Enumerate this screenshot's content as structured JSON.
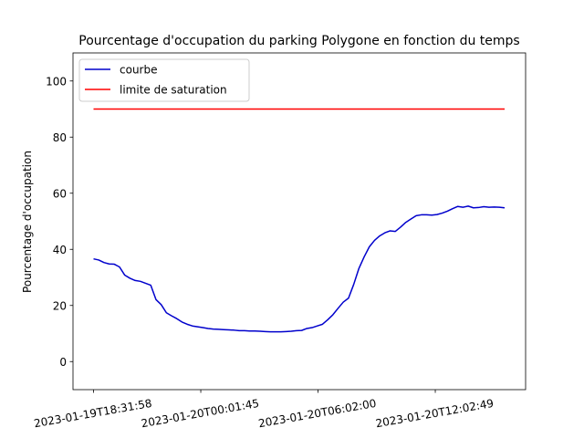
{
  "chart_data": {
    "type": "line",
    "title": "Pourcentage d'occupation du parking Polygone en fonction du temps",
    "ylabel": "Pourcentage d'occupation",
    "xlabel": "",
    "ylim": [
      -10,
      110
    ],
    "yticks": [
      0,
      20,
      40,
      60,
      80,
      100
    ],
    "xticks": [
      "2023-01-19T18:31:58",
      "2023-01-20T00:01:45",
      "2023-01-20T06:02:00",
      "2023-01-20T12:02:49"
    ],
    "grid": false,
    "legend_position": "upper-left",
    "series": [
      {
        "name": "courbe",
        "color": "#0000cc",
        "x": [
          "2023-01-19T18:31:58",
          "2023-01-19T18:47:58",
          "2023-01-19T19:03:58",
          "2023-01-19T19:19:58",
          "2023-01-19T19:35:58",
          "2023-01-19T19:51:58",
          "2023-01-19T20:07:58",
          "2023-01-19T20:23:58",
          "2023-01-19T20:39:58",
          "2023-01-19T20:55:58",
          "2023-01-19T21:11:58",
          "2023-01-19T21:27:58",
          "2023-01-19T21:43:58",
          "2023-01-19T21:59:58",
          "2023-01-19T22:15:58",
          "2023-01-19T22:31:58",
          "2023-01-19T22:47:58",
          "2023-01-19T23:03:58",
          "2023-01-19T23:19:58",
          "2023-01-19T23:35:58",
          "2023-01-19T23:51:58",
          "2023-01-20T00:07:58",
          "2023-01-20T00:23:58",
          "2023-01-20T00:39:58",
          "2023-01-20T00:55:58",
          "2023-01-20T01:11:58",
          "2023-01-20T01:27:58",
          "2023-01-20T01:43:58",
          "2023-01-20T01:59:58",
          "2023-01-20T02:15:58",
          "2023-01-20T02:31:58",
          "2023-01-20T02:47:58",
          "2023-01-20T03:03:58",
          "2023-01-20T03:19:58",
          "2023-01-20T03:35:58",
          "2023-01-20T03:51:58",
          "2023-01-20T04:07:58",
          "2023-01-20T04:23:58",
          "2023-01-20T04:39:58",
          "2023-01-20T04:55:58",
          "2023-01-20T05:11:58",
          "2023-01-20T05:27:58",
          "2023-01-20T05:43:58",
          "2023-01-20T05:59:58",
          "2023-01-20T06:15:58",
          "2023-01-20T06:31:58",
          "2023-01-20T06:47:58",
          "2023-01-20T07:03:58",
          "2023-01-20T07:19:58",
          "2023-01-20T07:35:58",
          "2023-01-20T07:51:58",
          "2023-01-20T08:07:58",
          "2023-01-20T08:23:58",
          "2023-01-20T08:39:58",
          "2023-01-20T08:55:58",
          "2023-01-20T09:11:58",
          "2023-01-20T09:27:58",
          "2023-01-20T09:43:58",
          "2023-01-20T09:59:58",
          "2023-01-20T10:15:58",
          "2023-01-20T10:31:58",
          "2023-01-20T10:47:58",
          "2023-01-20T11:03:58",
          "2023-01-20T11:19:58",
          "2023-01-20T11:35:58",
          "2023-01-20T11:51:58",
          "2023-01-20T12:07:58",
          "2023-01-20T12:23:58",
          "2023-01-20T12:39:58",
          "2023-01-20T12:55:58",
          "2023-01-20T13:11:58",
          "2023-01-20T13:27:58",
          "2023-01-20T13:43:58",
          "2023-01-20T13:59:58",
          "2023-01-20T14:15:58",
          "2023-01-20T14:31:58",
          "2023-01-20T14:47:58",
          "2023-01-20T15:03:58",
          "2023-01-20T15:19:58",
          "2023-01-20T15:35:58"
        ],
        "y": [
          36.6,
          36.2,
          35.3,
          34.8,
          34.7,
          33.7,
          30.8,
          29.7,
          28.9,
          28.6,
          27.9,
          27.2,
          22.1,
          20.3,
          17.4,
          16.3,
          15.3,
          14.1,
          13.3,
          12.7,
          12.4,
          12.1,
          11.8,
          11.6,
          11.5,
          11.4,
          11.3,
          11.2,
          11.0,
          11.0,
          10.9,
          10.9,
          10.8,
          10.7,
          10.6,
          10.6,
          10.6,
          10.7,
          10.8,
          11.0,
          11.1,
          11.8,
          12.1,
          12.7,
          13.3,
          14.9,
          16.7,
          19.0,
          21.2,
          22.6,
          27.5,
          33.2,
          37.3,
          40.9,
          43.2,
          44.8,
          45.9,
          46.6,
          46.4,
          47.9,
          49.6,
          50.8,
          52.0,
          52.3,
          52.3,
          52.2,
          52.4,
          52.9,
          53.6,
          54.5,
          55.3,
          55.0,
          55.4,
          54.8,
          54.9,
          55.2,
          55.0,
          55.1,
          55.0,
          54.8
        ]
      },
      {
        "name": "limite de saturation",
        "color": "#ff0000",
        "x": [
          "2023-01-19T18:31:58",
          "2023-01-20T15:35:58"
        ],
        "y": [
          90,
          90
        ]
      }
    ]
  }
}
